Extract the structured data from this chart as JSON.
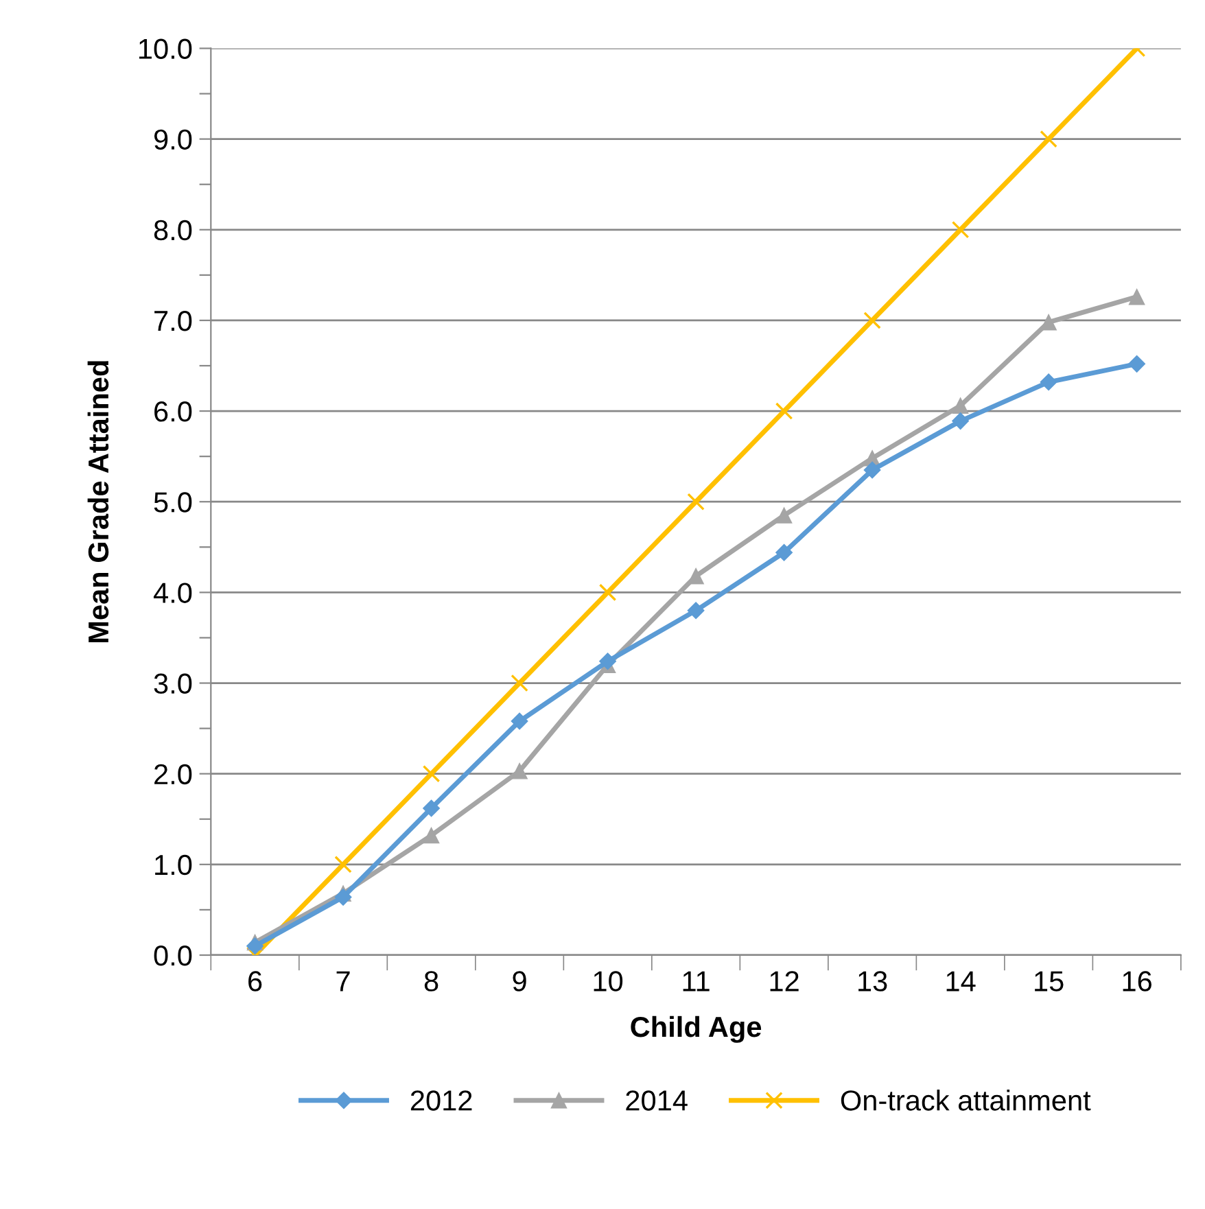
{
  "chart_data": {
    "type": "line",
    "xlabel": "Child Age",
    "ylabel": "Mean Grade Attained",
    "categories": [
      "6",
      "7",
      "8",
      "9",
      "10",
      "11",
      "12",
      "13",
      "14",
      "15",
      "16"
    ],
    "series": [
      {
        "name": "2012",
        "color": "#5b9bd5",
        "marker": "diamond",
        "values": [
          0.1,
          0.64,
          1.62,
          2.58,
          3.24,
          3.8,
          4.44,
          5.35,
          5.89,
          6.32,
          6.52
        ]
      },
      {
        "name": "2014",
        "color": "#a5a5a5",
        "marker": "triangle",
        "values": [
          0.14,
          0.68,
          1.32,
          2.03,
          3.2,
          4.18,
          4.85,
          5.48,
          6.06,
          6.98,
          7.26
        ]
      },
      {
        "name": "On-track attainment",
        "color": "#ffc000",
        "marker": "cross",
        "values": [
          0,
          1,
          2,
          3,
          4,
          5,
          6,
          7,
          8,
          9,
          10
        ]
      }
    ],
    "ylim": [
      0,
      10
    ],
    "yticks": [
      {
        "value": 0,
        "label": "0.0"
      },
      {
        "value": 0.5,
        "label": null
      },
      {
        "value": 1,
        "label": "1.0"
      },
      {
        "value": 1.5,
        "label": null
      },
      {
        "value": 2,
        "label": "2.0"
      },
      {
        "value": 2.5,
        "label": null
      },
      {
        "value": 3,
        "label": "3.0"
      },
      {
        "value": 3.5,
        "label": null
      },
      {
        "value": 4,
        "label": "4.0"
      },
      {
        "value": 4.5,
        "label": null
      },
      {
        "value": 5,
        "label": "5.0"
      },
      {
        "value": 5.5,
        "label": null
      },
      {
        "value": 6,
        "label": "6.0"
      },
      {
        "value": 6.5,
        "label": null
      },
      {
        "value": 7,
        "label": "7.0"
      },
      {
        "value": 7.5,
        "label": null
      },
      {
        "value": 8,
        "label": "8.0"
      },
      {
        "value": 8.5,
        "label": null
      },
      {
        "value": 9,
        "label": "9.0"
      },
      {
        "value": 9.5,
        "label": null
      },
      {
        "value": 10,
        "label": "10.0"
      }
    ],
    "grid": "y",
    "legend": "bottom",
    "line_style": "solid"
  }
}
